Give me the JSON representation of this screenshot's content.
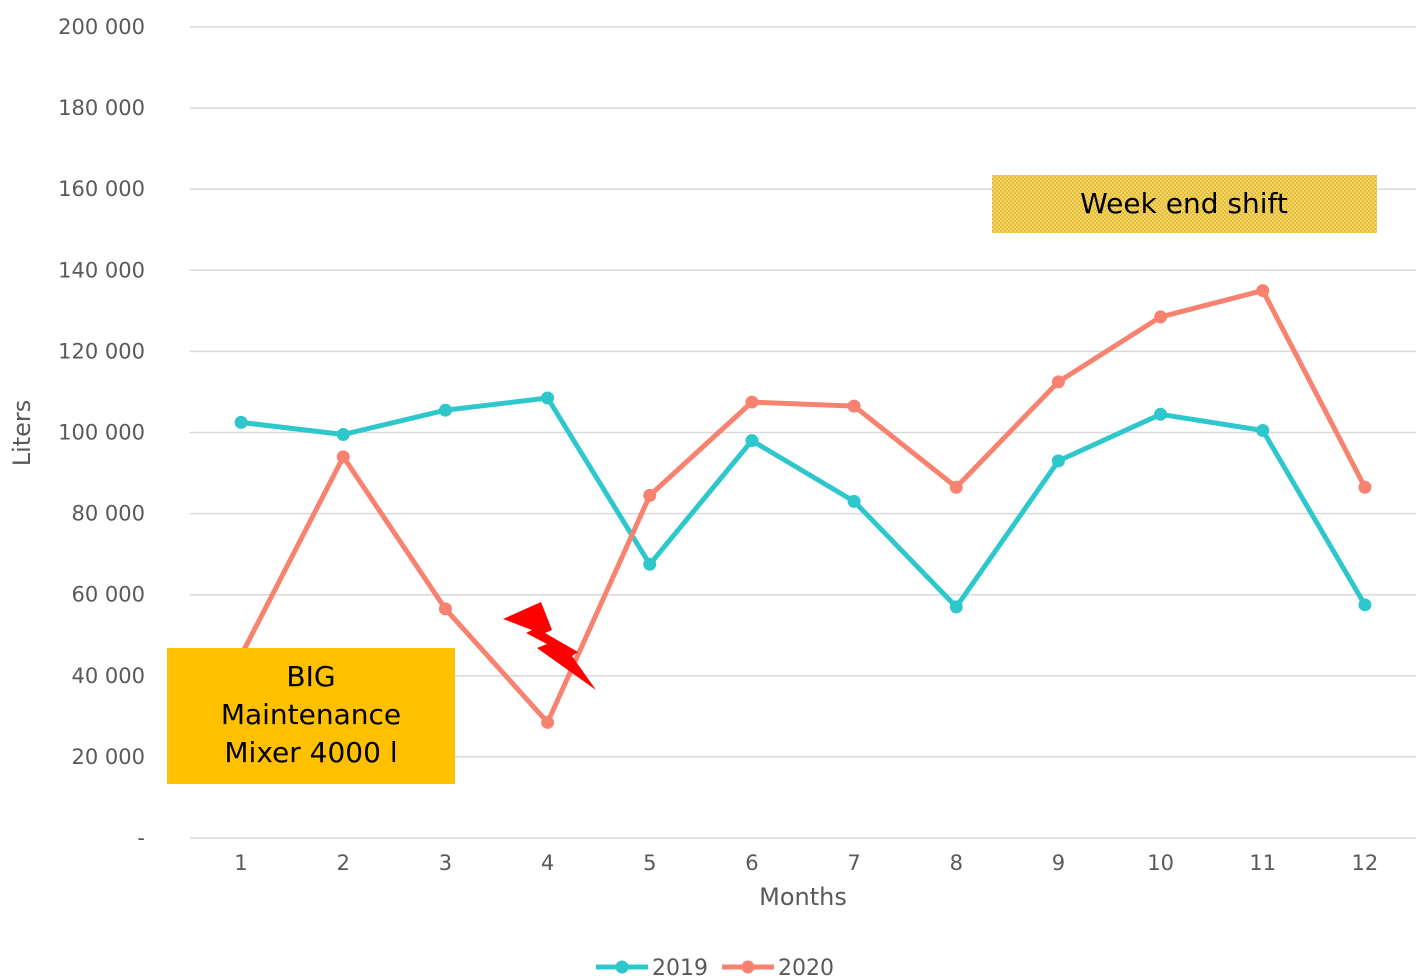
{
  "chart_data": {
    "type": "line",
    "x": [
      1,
      2,
      3,
      4,
      5,
      6,
      7,
      8,
      9,
      10,
      11,
      12
    ],
    "x_tick_labels": [
      "1",
      "2",
      "3",
      "4",
      "5",
      "6",
      "7",
      "8",
      "9",
      "10",
      "11",
      "12"
    ],
    "series": [
      {
        "name": "2019",
        "color": "#2EC8CC",
        "values": [
          102500,
          99500,
          105500,
          108500,
          67500,
          98000,
          83000,
          57000,
          93000,
          104500,
          100500,
          57500
        ]
      },
      {
        "name": "2020",
        "color": "#F88270",
        "values": [
          45000,
          94000,
          56500,
          28500,
          84500,
          107500,
          106500,
          86500,
          112500,
          128500,
          135000,
          86500
        ]
      }
    ],
    "ylim": [
      0,
      200000
    ],
    "y_tick_labels": [
      "-",
      "20 000",
      "40 000",
      "60 000",
      "80 000",
      "100 000",
      "120 000",
      "140 000",
      "160 000",
      "180 000",
      "200 000"
    ],
    "xlabel": "Months",
    "ylabel": "Liters",
    "grid": "horizontal",
    "legend_position": "bottom",
    "annotations": {
      "weekend_shift": {
        "text": "Week end shift",
        "color": "#E8BE32"
      },
      "maintenance": {
        "lines": [
          "BIG",
          "Maintenance",
          "Mixer 4000 l"
        ],
        "color": "#FFC000"
      },
      "lightning": {
        "icon": "lightning-bolt-icon",
        "color": "#FF0000"
      }
    }
  }
}
